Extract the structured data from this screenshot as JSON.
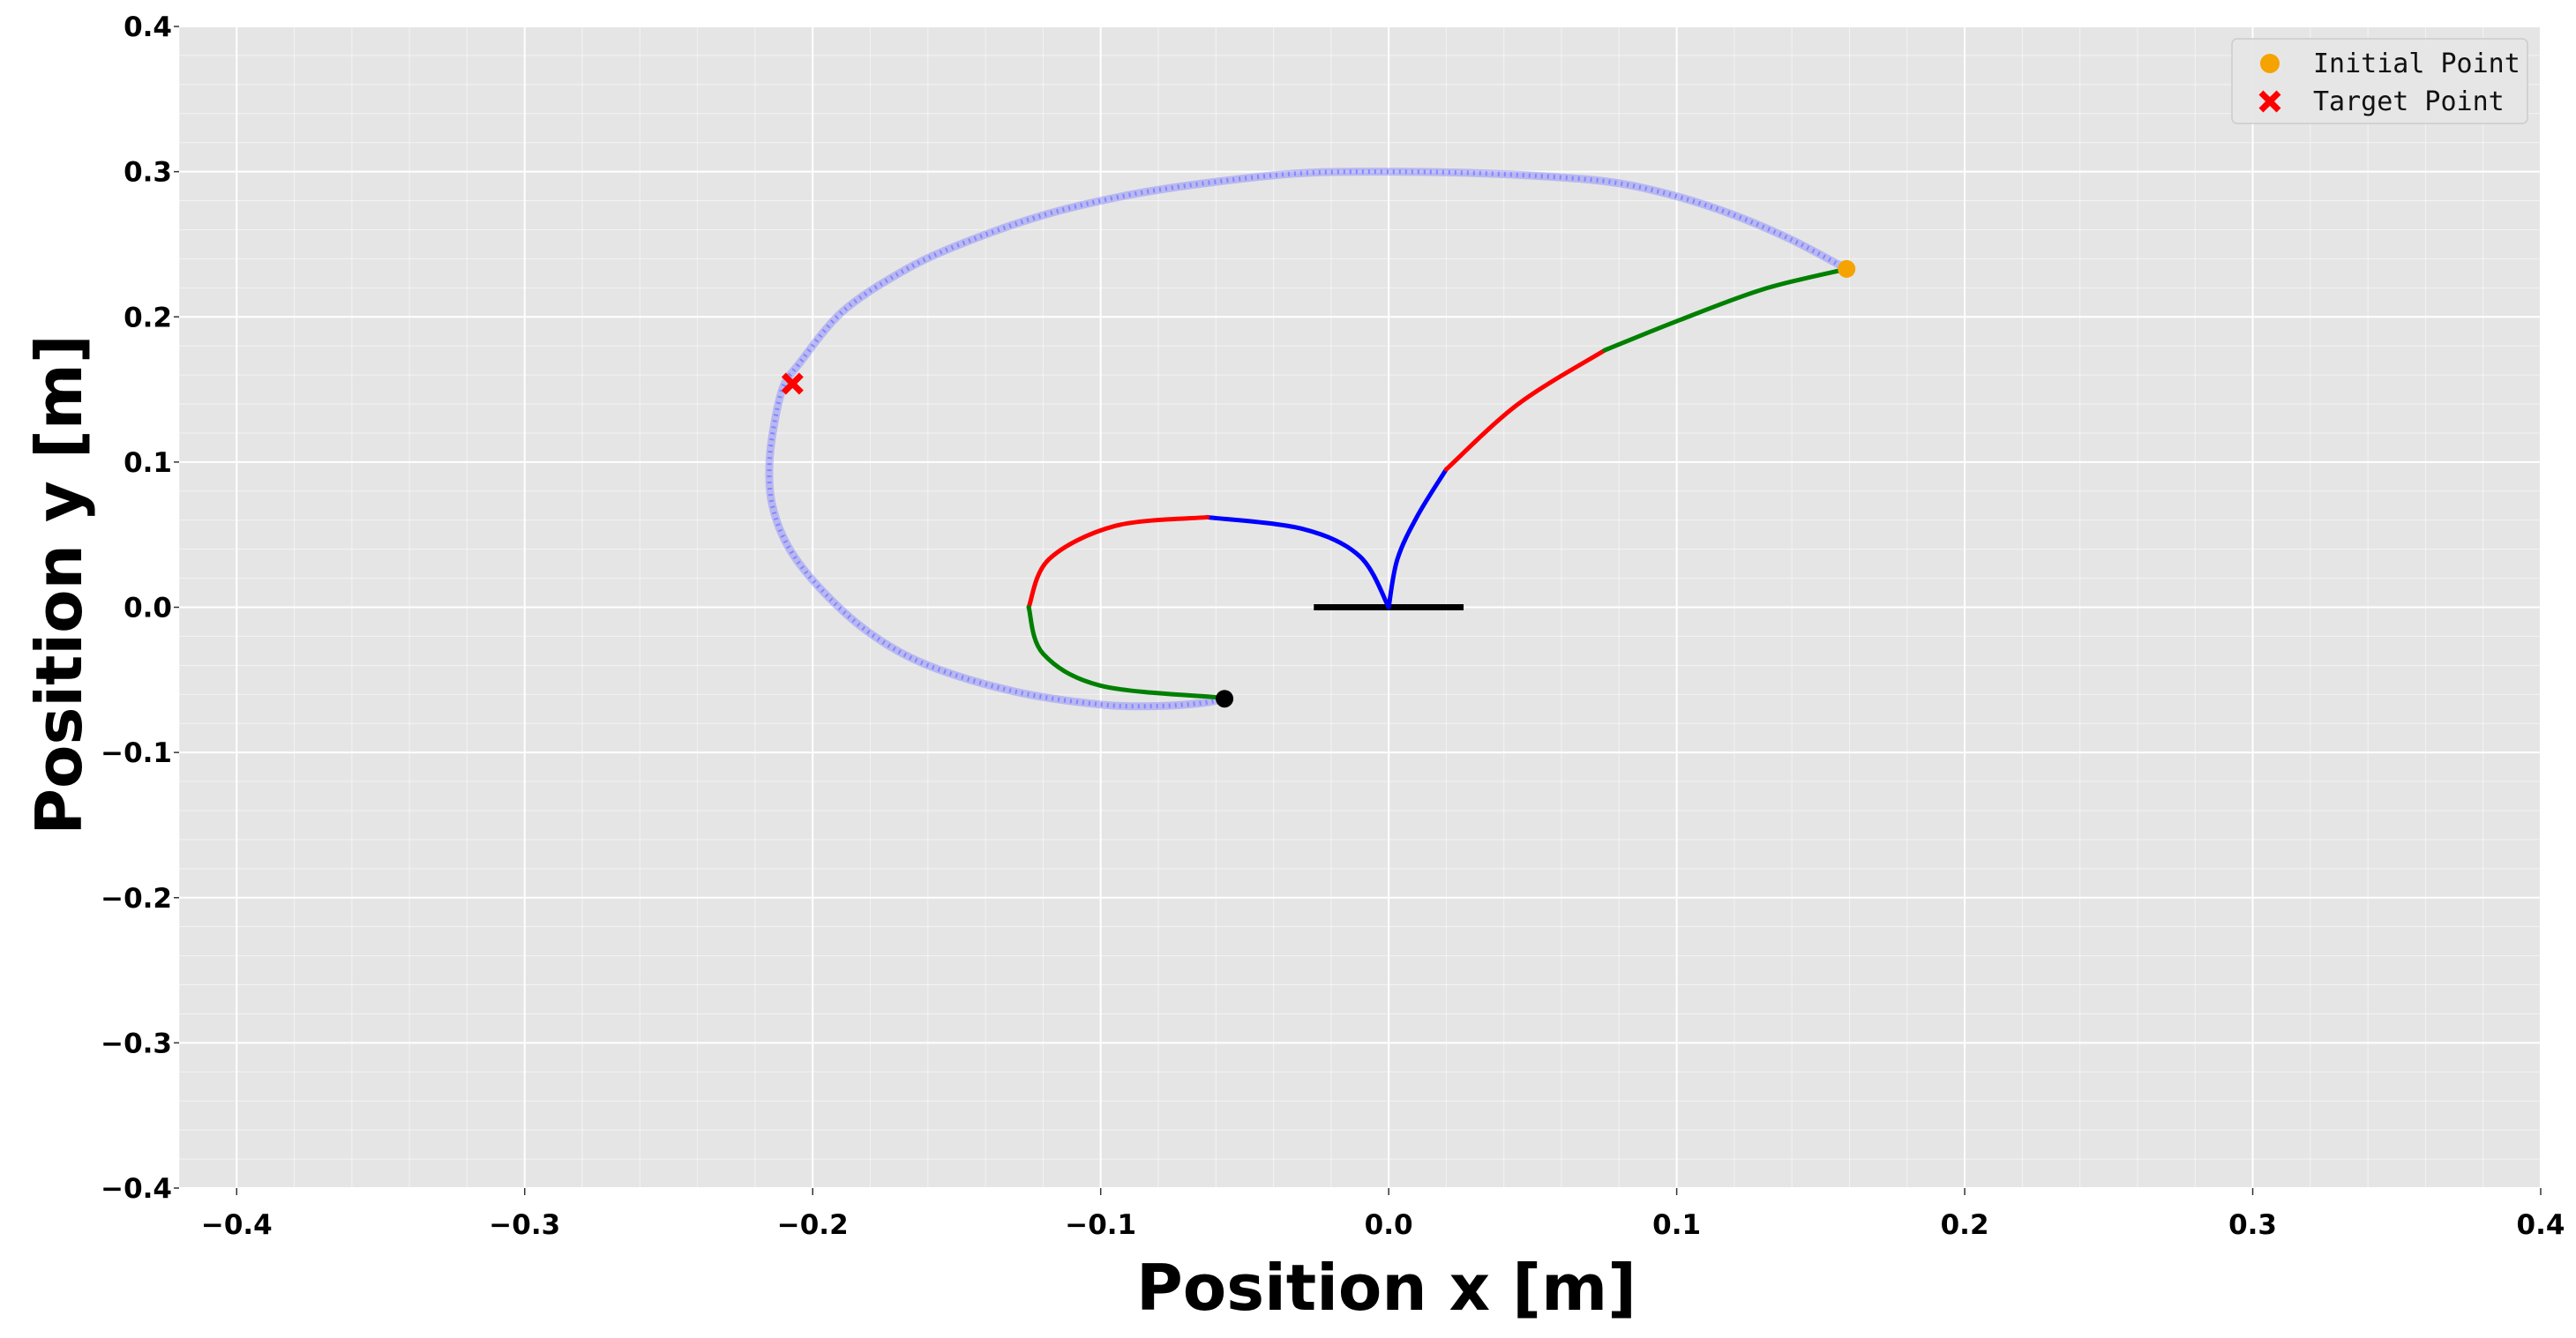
{
  "chart_data": {
    "type": "scatter",
    "xlabel": "Position x [m]",
    "ylabel": "Position y [m]",
    "xlim": [
      -0.42,
      0.4
    ],
    "ylim": [
      -0.4,
      0.4
    ],
    "xticks": [
      -0.4,
      -0.3,
      -0.2,
      -0.1,
      0.0,
      0.1,
      0.2,
      0.3,
      0.4
    ],
    "yticks": [
      -0.4,
      -0.3,
      -0.2,
      -0.1,
      0.0,
      0.1,
      0.2,
      0.3,
      0.4
    ],
    "xtick_labels": [
      "−0.4",
      "−0.3",
      "−0.2",
      "−0.1",
      "0.0",
      "0.1",
      "0.2",
      "0.3",
      "0.4"
    ],
    "ytick_labels": [
      "−0.4",
      "−0.3",
      "−0.2",
      "−0.1",
      "0.0",
      "0.1",
      "0.2",
      "0.3",
      "0.4"
    ],
    "grid": true,
    "background_color": "#e5e5e5",
    "grid_color": "#ffffff",
    "legend_position": "top-right",
    "legend": [
      {
        "label": "Initial Point",
        "marker": "circle",
        "color": "#f5a300"
      },
      {
        "label": "Target Point",
        "marker": "x",
        "color": "#ff0000"
      }
    ],
    "base_segment": {
      "x": [
        -0.026,
        0.026
      ],
      "y": [
        0.0,
        0.0
      ],
      "color": "#000000"
    },
    "end_effector_path": {
      "color": "#8080ff",
      "points": [
        [
          0.159,
          0.233
        ],
        [
          0.14,
          0.253
        ],
        [
          0.12,
          0.27
        ],
        [
          0.1,
          0.283
        ],
        [
          0.08,
          0.292
        ],
        [
          0.06,
          0.296
        ],
        [
          0.03,
          0.299
        ],
        [
          0.0,
          0.3
        ],
        [
          -0.03,
          0.299
        ],
        [
          -0.06,
          0.293
        ],
        [
          -0.09,
          0.284
        ],
        [
          -0.12,
          0.27
        ],
        [
          -0.15,
          0.249
        ],
        [
          -0.17,
          0.23
        ],
        [
          -0.19,
          0.203
        ],
        [
          -0.205,
          0.167
        ],
        [
          -0.21,
          0.153
        ],
        [
          -0.213,
          0.13
        ],
        [
          -0.215,
          0.1
        ],
        [
          -0.214,
          0.07
        ],
        [
          -0.208,
          0.04
        ],
        [
          -0.196,
          0.01
        ],
        [
          -0.18,
          -0.018
        ],
        [
          -0.16,
          -0.04
        ],
        [
          -0.13,
          -0.058
        ],
        [
          -0.1,
          -0.067
        ],
        [
          -0.08,
          -0.068
        ],
        [
          -0.065,
          -0.066
        ],
        [
          -0.057,
          -0.063
        ]
      ]
    },
    "link1_segments": [
      {
        "color": "#0000ff",
        "points": [
          [
            0.0,
            0.0
          ],
          [
            0.003,
            0.033
          ],
          [
            0.01,
            0.063
          ],
          [
            0.02,
            0.095
          ]
        ]
      },
      {
        "color": "#ff0000",
        "points": [
          [
            0.02,
            0.095
          ],
          [
            0.045,
            0.14
          ],
          [
            0.075,
            0.177
          ]
        ]
      },
      {
        "color": "#008000",
        "points": [
          [
            0.075,
            0.177
          ],
          [
            0.1,
            0.197
          ],
          [
            0.13,
            0.219
          ],
          [
            0.159,
            0.233
          ]
        ]
      }
    ],
    "link2_segments": [
      {
        "color": "#0000ff",
        "points": [
          [
            0.0,
            0.0
          ],
          [
            -0.01,
            0.035
          ],
          [
            -0.03,
            0.054
          ],
          [
            -0.063,
            0.062
          ]
        ]
      },
      {
        "color": "#ff0000",
        "points": [
          [
            -0.063,
            0.062
          ],
          [
            -0.095,
            0.056
          ],
          [
            -0.118,
            0.033
          ],
          [
            -0.125,
            0.0
          ]
        ]
      },
      {
        "color": "#008000",
        "points": [
          [
            -0.125,
            0.0
          ],
          [
            -0.12,
            -0.032
          ],
          [
            -0.1,
            -0.054
          ],
          [
            -0.06,
            -0.062
          ]
        ]
      }
    ],
    "initial_point": {
      "x": 0.159,
      "y": 0.233,
      "color": "#f5a300"
    },
    "target_point": {
      "x": -0.207,
      "y": 0.154,
      "color": "#ff0000"
    },
    "current_point": {
      "x": -0.057,
      "y": -0.063,
      "color": "#000000"
    }
  }
}
